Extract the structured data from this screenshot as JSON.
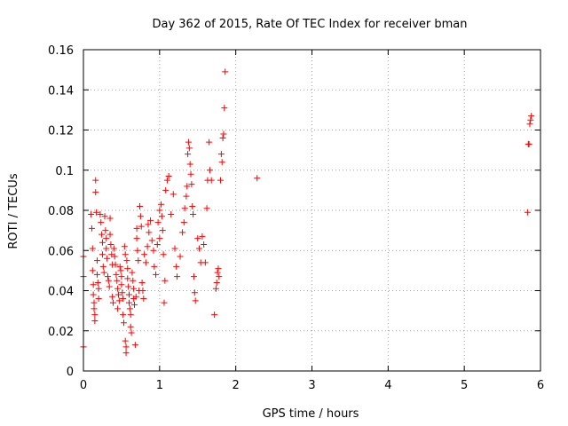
{
  "chart_data": {
    "type": "scatter",
    "title": "Day 362 of 2015, Rate Of TEC Index for receiver bman",
    "xlabel": "GPS time / hours",
    "ylabel": "ROTI / TECUs",
    "xlim": [
      0,
      6
    ],
    "ylim": [
      0,
      0.16
    ],
    "x_ticks": [
      "0",
      "1",
      "2",
      "3",
      "4",
      "5",
      "6"
    ],
    "y_ticks": [
      "0",
      "0.02",
      "0.04",
      "0.06",
      "0.08",
      "0.1",
      "0.12",
      "0.14",
      "0.16"
    ],
    "grid": true,
    "marker": "+",
    "marker_color": "#ff0000",
    "points": [
      [
        0.0,
        0.057
      ],
      [
        0.0,
        0.047
      ],
      [
        0.0,
        0.012
      ],
      [
        0.1,
        0.078
      ],
      [
        0.11,
        0.071
      ],
      [
        0.12,
        0.061
      ],
      [
        0.12,
        0.05
      ],
      [
        0.13,
        0.043
      ],
      [
        0.13,
        0.038
      ],
      [
        0.14,
        0.034
      ],
      [
        0.14,
        0.031
      ],
      [
        0.15,
        0.028
      ],
      [
        0.15,
        0.025
      ],
      [
        0.16,
        0.095
      ],
      [
        0.16,
        0.089
      ],
      [
        0.17,
        0.079
      ],
      [
        0.18,
        0.055
      ],
      [
        0.18,
        0.048
      ],
      [
        0.19,
        0.044
      ],
      [
        0.2,
        0.041
      ],
      [
        0.2,
        0.036
      ],
      [
        0.22,
        0.078
      ],
      [
        0.23,
        0.074
      ],
      [
        0.24,
        0.068
      ],
      [
        0.25,
        0.064
      ],
      [
        0.25,
        0.058
      ],
      [
        0.26,
        0.052
      ],
      [
        0.27,
        0.049
      ],
      [
        0.28,
        0.077
      ],
      [
        0.29,
        0.07
      ],
      [
        0.3,
        0.066
      ],
      [
        0.3,
        0.061
      ],
      [
        0.31,
        0.056
      ],
      [
        0.32,
        0.047
      ],
      [
        0.33,
        0.045
      ],
      [
        0.34,
        0.042
      ],
      [
        0.35,
        0.076
      ],
      [
        0.35,
        0.068
      ],
      [
        0.36,
        0.063
      ],
      [
        0.37,
        0.058
      ],
      [
        0.38,
        0.053
      ],
      [
        0.38,
        0.037
      ],
      [
        0.39,
        0.034
      ],
      [
        0.4,
        0.061
      ],
      [
        0.41,
        0.057
      ],
      [
        0.42,
        0.053
      ],
      [
        0.43,
        0.048
      ],
      [
        0.44,
        0.045
      ],
      [
        0.45,
        0.041
      ],
      [
        0.45,
        0.031
      ],
      [
        0.46,
        0.038
      ],
      [
        0.47,
        0.035
      ],
      [
        0.48,
        0.052
      ],
      [
        0.49,
        0.05
      ],
      [
        0.5,
        0.047
      ],
      [
        0.5,
        0.043
      ],
      [
        0.51,
        0.039
      ],
      [
        0.52,
        0.036
      ],
      [
        0.52,
        0.028
      ],
      [
        0.53,
        0.024
      ],
      [
        0.54,
        0.062
      ],
      [
        0.55,
        0.058
      ],
      [
        0.55,
        0.015
      ],
      [
        0.56,
        0.012
      ],
      [
        0.56,
        0.009
      ],
      [
        0.57,
        0.055
      ],
      [
        0.58,
        0.051
      ],
      [
        0.58,
        0.046
      ],
      [
        0.59,
        0.042
      ],
      [
        0.6,
        0.038
      ],
      [
        0.6,
        0.034
      ],
      [
        0.61,
        0.031
      ],
      [
        0.62,
        0.028
      ],
      [
        0.62,
        0.022
      ],
      [
        0.63,
        0.019
      ],
      [
        0.64,
        0.049
      ],
      [
        0.65,
        0.045
      ],
      [
        0.66,
        0.041
      ],
      [
        0.66,
        0.036
      ],
      [
        0.67,
        0.033
      ],
      [
        0.68,
        0.013
      ],
      [
        0.69,
        0.037
      ],
      [
        0.7,
        0.071
      ],
      [
        0.7,
        0.066
      ],
      [
        0.71,
        0.06
      ],
      [
        0.72,
        0.055
      ],
      [
        0.73,
        0.04
      ],
      [
        0.74,
        0.082
      ],
      [
        0.75,
        0.077
      ],
      [
        0.76,
        0.072
      ],
      [
        0.77,
        0.044
      ],
      [
        0.78,
        0.04
      ],
      [
        0.79,
        0.036
      ],
      [
        0.8,
        0.058
      ],
      [
        0.82,
        0.054
      ],
      [
        0.84,
        0.062
      ],
      [
        0.85,
        0.073
      ],
      [
        0.86,
        0.069
      ],
      [
        0.88,
        0.075
      ],
      [
        0.9,
        0.065
      ],
      [
        0.92,
        0.06
      ],
      [
        0.93,
        0.052
      ],
      [
        0.95,
        0.048
      ],
      [
        0.97,
        0.063
      ],
      [
        0.98,
        0.074
      ],
      [
        1.0,
        0.08
      ],
      [
        1.0,
        0.066
      ],
      [
        1.02,
        0.083
      ],
      [
        1.03,
        0.077
      ],
      [
        1.04,
        0.07
      ],
      [
        1.05,
        0.058
      ],
      [
        1.06,
        0.034
      ],
      [
        1.07,
        0.045
      ],
      [
        1.08,
        0.09
      ],
      [
        1.1,
        0.095
      ],
      [
        1.12,
        0.097
      ],
      [
        1.15,
        0.078
      ],
      [
        1.18,
        0.088
      ],
      [
        1.2,
        0.061
      ],
      [
        1.22,
        0.052
      ],
      [
        1.23,
        0.047
      ],
      [
        1.27,
        0.057
      ],
      [
        1.3,
        0.069
      ],
      [
        1.32,
        0.074
      ],
      [
        1.33,
        0.081
      ],
      [
        1.35,
        0.087
      ],
      [
        1.36,
        0.092
      ],
      [
        1.37,
        0.108
      ],
      [
        1.38,
        0.114
      ],
      [
        1.39,
        0.111
      ],
      [
        1.4,
        0.103
      ],
      [
        1.41,
        0.098
      ],
      [
        1.42,
        0.093
      ],
      [
        1.43,
        0.082
      ],
      [
        1.44,
        0.078
      ],
      [
        1.45,
        0.047
      ],
      [
        1.46,
        0.039
      ],
      [
        1.47,
        0.035
      ],
      [
        1.5,
        0.066
      ],
      [
        1.52,
        0.061
      ],
      [
        1.54,
        0.054
      ],
      [
        1.56,
        0.067
      ],
      [
        1.58,
        0.063
      ],
      [
        1.6,
        0.054
      ],
      [
        1.62,
        0.081
      ],
      [
        1.63,
        0.095
      ],
      [
        1.65,
        0.114
      ],
      [
        1.66,
        0.1
      ],
      [
        1.68,
        0.095
      ],
      [
        1.72,
        0.028
      ],
      [
        1.74,
        0.041
      ],
      [
        1.75,
        0.044
      ],
      [
        1.76,
        0.049
      ],
      [
        1.77,
        0.051
      ],
      [
        1.78,
        0.047
      ],
      [
        1.8,
        0.095
      ],
      [
        1.81,
        0.108
      ],
      [
        1.82,
        0.104
      ],
      [
        1.83,
        0.116
      ],
      [
        1.84,
        0.118
      ],
      [
        1.85,
        0.131
      ],
      [
        1.86,
        0.149
      ],
      [
        2.28,
        0.096
      ],
      [
        5.83,
        0.079
      ],
      [
        5.84,
        0.113
      ],
      [
        5.85,
        0.113
      ],
      [
        5.86,
        0.123
      ],
      [
        5.87,
        0.125
      ],
      [
        5.88,
        0.127
      ]
    ]
  }
}
